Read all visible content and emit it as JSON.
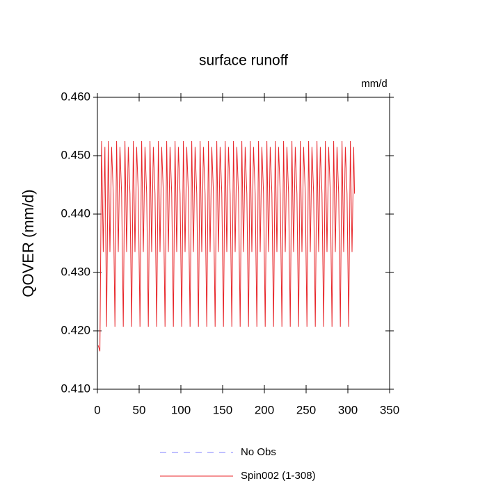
{
  "chart_data": {
    "type": "line",
    "title": "surface runoff",
    "units_label": "mm/d",
    "y_label": "QOVER  (mm/d)",
    "xlim": [
      0,
      350
    ],
    "xticks": [
      0,
      50,
      100,
      150,
      200,
      250,
      300,
      350
    ],
    "ylim": [
      0.41,
      0.46
    ],
    "yticks": [
      {
        "value": 0.41,
        "label": "0.410"
      },
      {
        "value": 0.42,
        "label": "0.420"
      },
      {
        "value": 0.43,
        "label": "0.430"
      },
      {
        "value": 0.44,
        "label": "0.440"
      },
      {
        "value": 0.45,
        "label": "0.450"
      },
      {
        "value": 0.46,
        "label": "0.460"
      }
    ],
    "legend": [
      {
        "name": "No Obs",
        "color": "#8080ff",
        "dashed": true
      }
    ],
    "x": [
      1,
      3,
      5,
      7,
      9,
      11,
      13,
      15,
      17,
      19,
      21,
      23,
      25,
      27,
      29,
      31,
      33,
      35,
      37,
      39,
      41,
      43,
      45,
      47,
      49,
      51,
      53,
      55,
      57,
      59,
      61,
      63,
      65,
      67,
      69,
      71,
      73,
      75,
      77,
      79,
      81,
      83,
      85,
      87,
      89,
      91,
      93,
      95,
      97,
      99,
      101,
      103,
      105,
      107,
      109,
      111,
      113,
      115,
      117,
      119,
      121,
      123,
      125,
      127,
      129,
      131,
      133,
      135,
      137,
      139,
      141,
      143,
      145,
      147,
      149,
      151,
      153,
      155,
      157,
      159,
      161,
      163,
      165,
      167,
      169,
      171,
      173,
      175,
      177,
      179,
      181,
      183,
      185,
      187,
      189,
      191,
      193,
      195,
      197,
      199,
      201,
      203,
      205,
      207,
      209,
      211,
      213,
      215,
      217,
      219,
      221,
      223,
      225,
      227,
      229,
      231,
      233,
      235,
      237,
      239,
      241,
      243,
      245,
      247,
      249,
      251,
      253,
      255,
      257,
      259,
      261,
      263,
      265,
      267,
      269,
      271,
      273,
      275,
      277,
      279,
      281,
      283,
      285,
      287,
      289,
      291,
      293,
      295,
      297,
      299,
      301,
      303,
      305,
      307,
      308
    ],
    "series": [
      {
        "name": "Spin002 (1-308)",
        "color": "#e8262a",
        "values": [
          0.4175,
          0.4165,
          0.4525,
          0.4335,
          0.4515,
          0.4207,
          0.4525,
          0.4335,
          0.4515,
          0.4435,
          0.4207,
          0.4525,
          0.4335,
          0.4515,
          0.4435,
          0.4207,
          0.4525,
          0.4335,
          0.4515,
          0.4435,
          0.4207,
          0.4525,
          0.4335,
          0.4515,
          0.4435,
          0.4207,
          0.4525,
          0.4335,
          0.4515,
          0.4435,
          0.4207,
          0.4525,
          0.4335,
          0.4515,
          0.4435,
          0.4207,
          0.4525,
          0.4335,
          0.4515,
          0.4435,
          0.4207,
          0.4525,
          0.4335,
          0.4515,
          0.4435,
          0.4207,
          0.4525,
          0.4335,
          0.4515,
          0.4435,
          0.4207,
          0.4525,
          0.4335,
          0.4515,
          0.4435,
          0.4207,
          0.4525,
          0.4335,
          0.4515,
          0.4435,
          0.4207,
          0.4525,
          0.4335,
          0.4515,
          0.4435,
          0.4207,
          0.4525,
          0.4335,
          0.4515,
          0.4435,
          0.4207,
          0.4525,
          0.4335,
          0.4515,
          0.4435,
          0.4207,
          0.4525,
          0.4335,
          0.4515,
          0.4435,
          0.4207,
          0.4525,
          0.4335,
          0.4515,
          0.4435,
          0.4207,
          0.4525,
          0.4335,
          0.4515,
          0.4435,
          0.4207,
          0.4525,
          0.4335,
          0.4515,
          0.4435,
          0.4207,
          0.4525,
          0.4335,
          0.4515,
          0.4435,
          0.4207,
          0.4525,
          0.4335,
          0.4515,
          0.4435,
          0.4207,
          0.4525,
          0.4335,
          0.4515,
          0.4435,
          0.4207,
          0.4525,
          0.4335,
          0.4515,
          0.4435,
          0.4207,
          0.4525,
          0.4335,
          0.4515,
          0.4435,
          0.4207,
          0.4525,
          0.4335,
          0.4515,
          0.4435,
          0.4207,
          0.4525,
          0.4335,
          0.4515,
          0.4435,
          0.4207,
          0.4525,
          0.4335,
          0.4515,
          0.4435,
          0.4207,
          0.4525,
          0.4335,
          0.4515,
          0.4435,
          0.4207,
          0.4525,
          0.4335,
          0.4515,
          0.4435,
          0.4207,
          0.4525,
          0.4335,
          0.4515,
          0.4435,
          0.4207,
          0.4525,
          0.4335,
          0.4515,
          0.4435
        ]
      }
    ]
  }
}
